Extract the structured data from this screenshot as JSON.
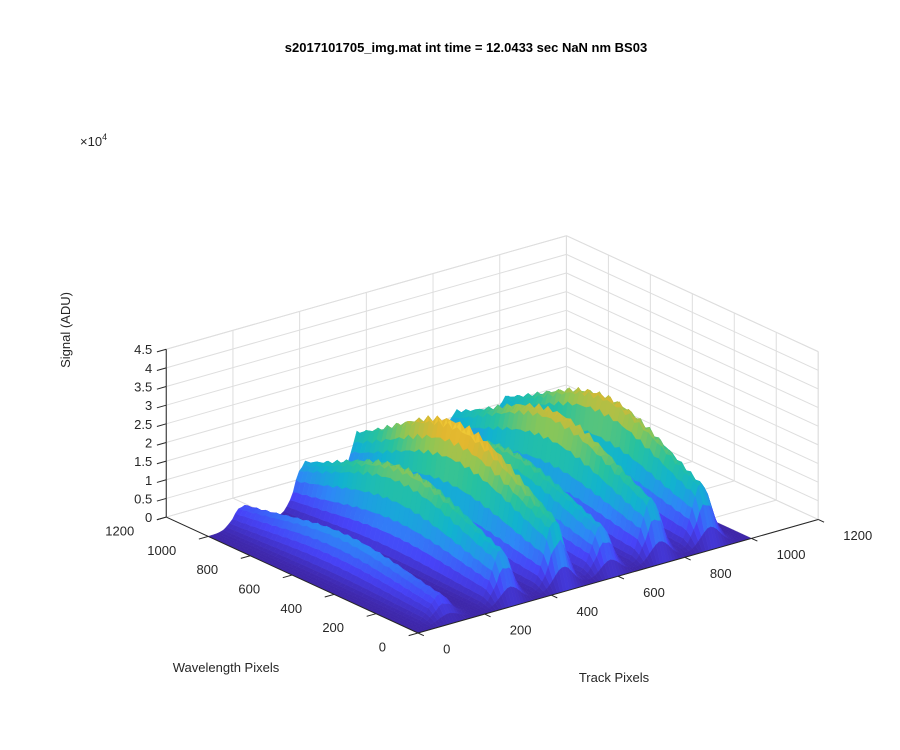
{
  "chart_data": {
    "type": "surface",
    "title": "s2017101705_img.mat int time = 12.0433 sec  NaN nm BS03",
    "xlabel": "Track Pixels",
    "ylabel": "Wavelength Pixels",
    "zlabel": "Signal (ADU)",
    "z_exponent_label": "×10",
    "z_exponent_power": "4",
    "xlim": [
      0,
      1200
    ],
    "ylim": [
      0,
      1200
    ],
    "zlim": [
      0,
      4.5
    ],
    "x_ticks": [
      "0",
      "200",
      "400",
      "600",
      "800",
      "1000",
      "1200"
    ],
    "y_ticks": [
      "0",
      "200",
      "400",
      "600",
      "800",
      "1000",
      "1200"
    ],
    "z_ticks": [
      "0",
      "0.5",
      "1",
      "1.5",
      "2",
      "2.5",
      "3",
      "3.5",
      "4",
      "4.5"
    ],
    "z_scale": 10000,
    "grid": true,
    "colormap": [
      "#3e26a8",
      "#4743f8",
      "#2e87f7",
      "#11b3cf",
      "#27c29f",
      "#8ec655",
      "#e2b72f",
      "#fad73a"
    ],
    "peaks": [
      {
        "track_center": 105,
        "peak_signal": 1.05
      },
      {
        "track_center": 290,
        "peak_signal": 2.35
      },
      {
        "track_center": 450,
        "peak_signal": 3.05
      },
      {
        "track_center": 590,
        "peak_signal": 2.15
      },
      {
        "track_center": 740,
        "peak_signal": 2.75
      },
      {
        "track_center": 890,
        "peak_signal": 2.8
      }
    ],
    "signal_profile_note": ""
  }
}
